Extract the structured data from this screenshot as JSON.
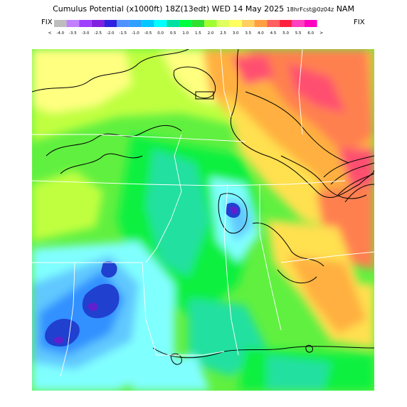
{
  "header": {
    "product": "Cumulus Potential",
    "units": "(x1000ft)",
    "init": "18Z(13edt)",
    "valid": "WED 14 May 2025",
    "forecast": "18hrFcst@0z04z",
    "model": "NAM"
  },
  "colorbar": {
    "left_label": "FIX",
    "right_label": "FIX",
    "low_arrow": "<",
    "high_arrow": ">",
    "levels": [
      "-4.0",
      "-3.5",
      "-3.0",
      "-2.5",
      "-2.0",
      "-1.5",
      "-1.0",
      "-0.5",
      "0.0",
      "0.5",
      "1.0",
      "1.5",
      "2.0",
      "2.5",
      "3.0",
      "3.5",
      "4.0",
      "4.5",
      "5.0",
      "5.5",
      "6.0"
    ],
    "colors": [
      "#bdbdbd",
      "#c080ff",
      "#a040ff",
      "#8020e0",
      "#3020e0",
      "#5090ff",
      "#30a0ff",
      "#00c8ff",
      "#00ffff",
      "#00e0a0",
      "#00ff40",
      "#30e030",
      "#a0ff30",
      "#e0ff60",
      "#ffff60",
      "#ffd060",
      "#ffa040",
      "#ff6060",
      "#ff2040",
      "#ff40c0",
      "#ff00c0"
    ]
  },
  "map": {
    "palette": {
      "deep_blue": "#2040d0",
      "blue": "#3090ff",
      "light_blue": "#60c8ff",
      "cyan": "#80ffff",
      "teal": "#20e0a0",
      "green": "#10f040",
      "light_green": "#60f040",
      "yellow_green": "#c0ff40",
      "pale_yellow": "#ffff80",
      "yellow": "#ffe050",
      "orange": "#ffb040",
      "red_orange": "#ff8050",
      "pink_red": "#ff5070",
      "white_state_lines": "#ffffff"
    }
  }
}
